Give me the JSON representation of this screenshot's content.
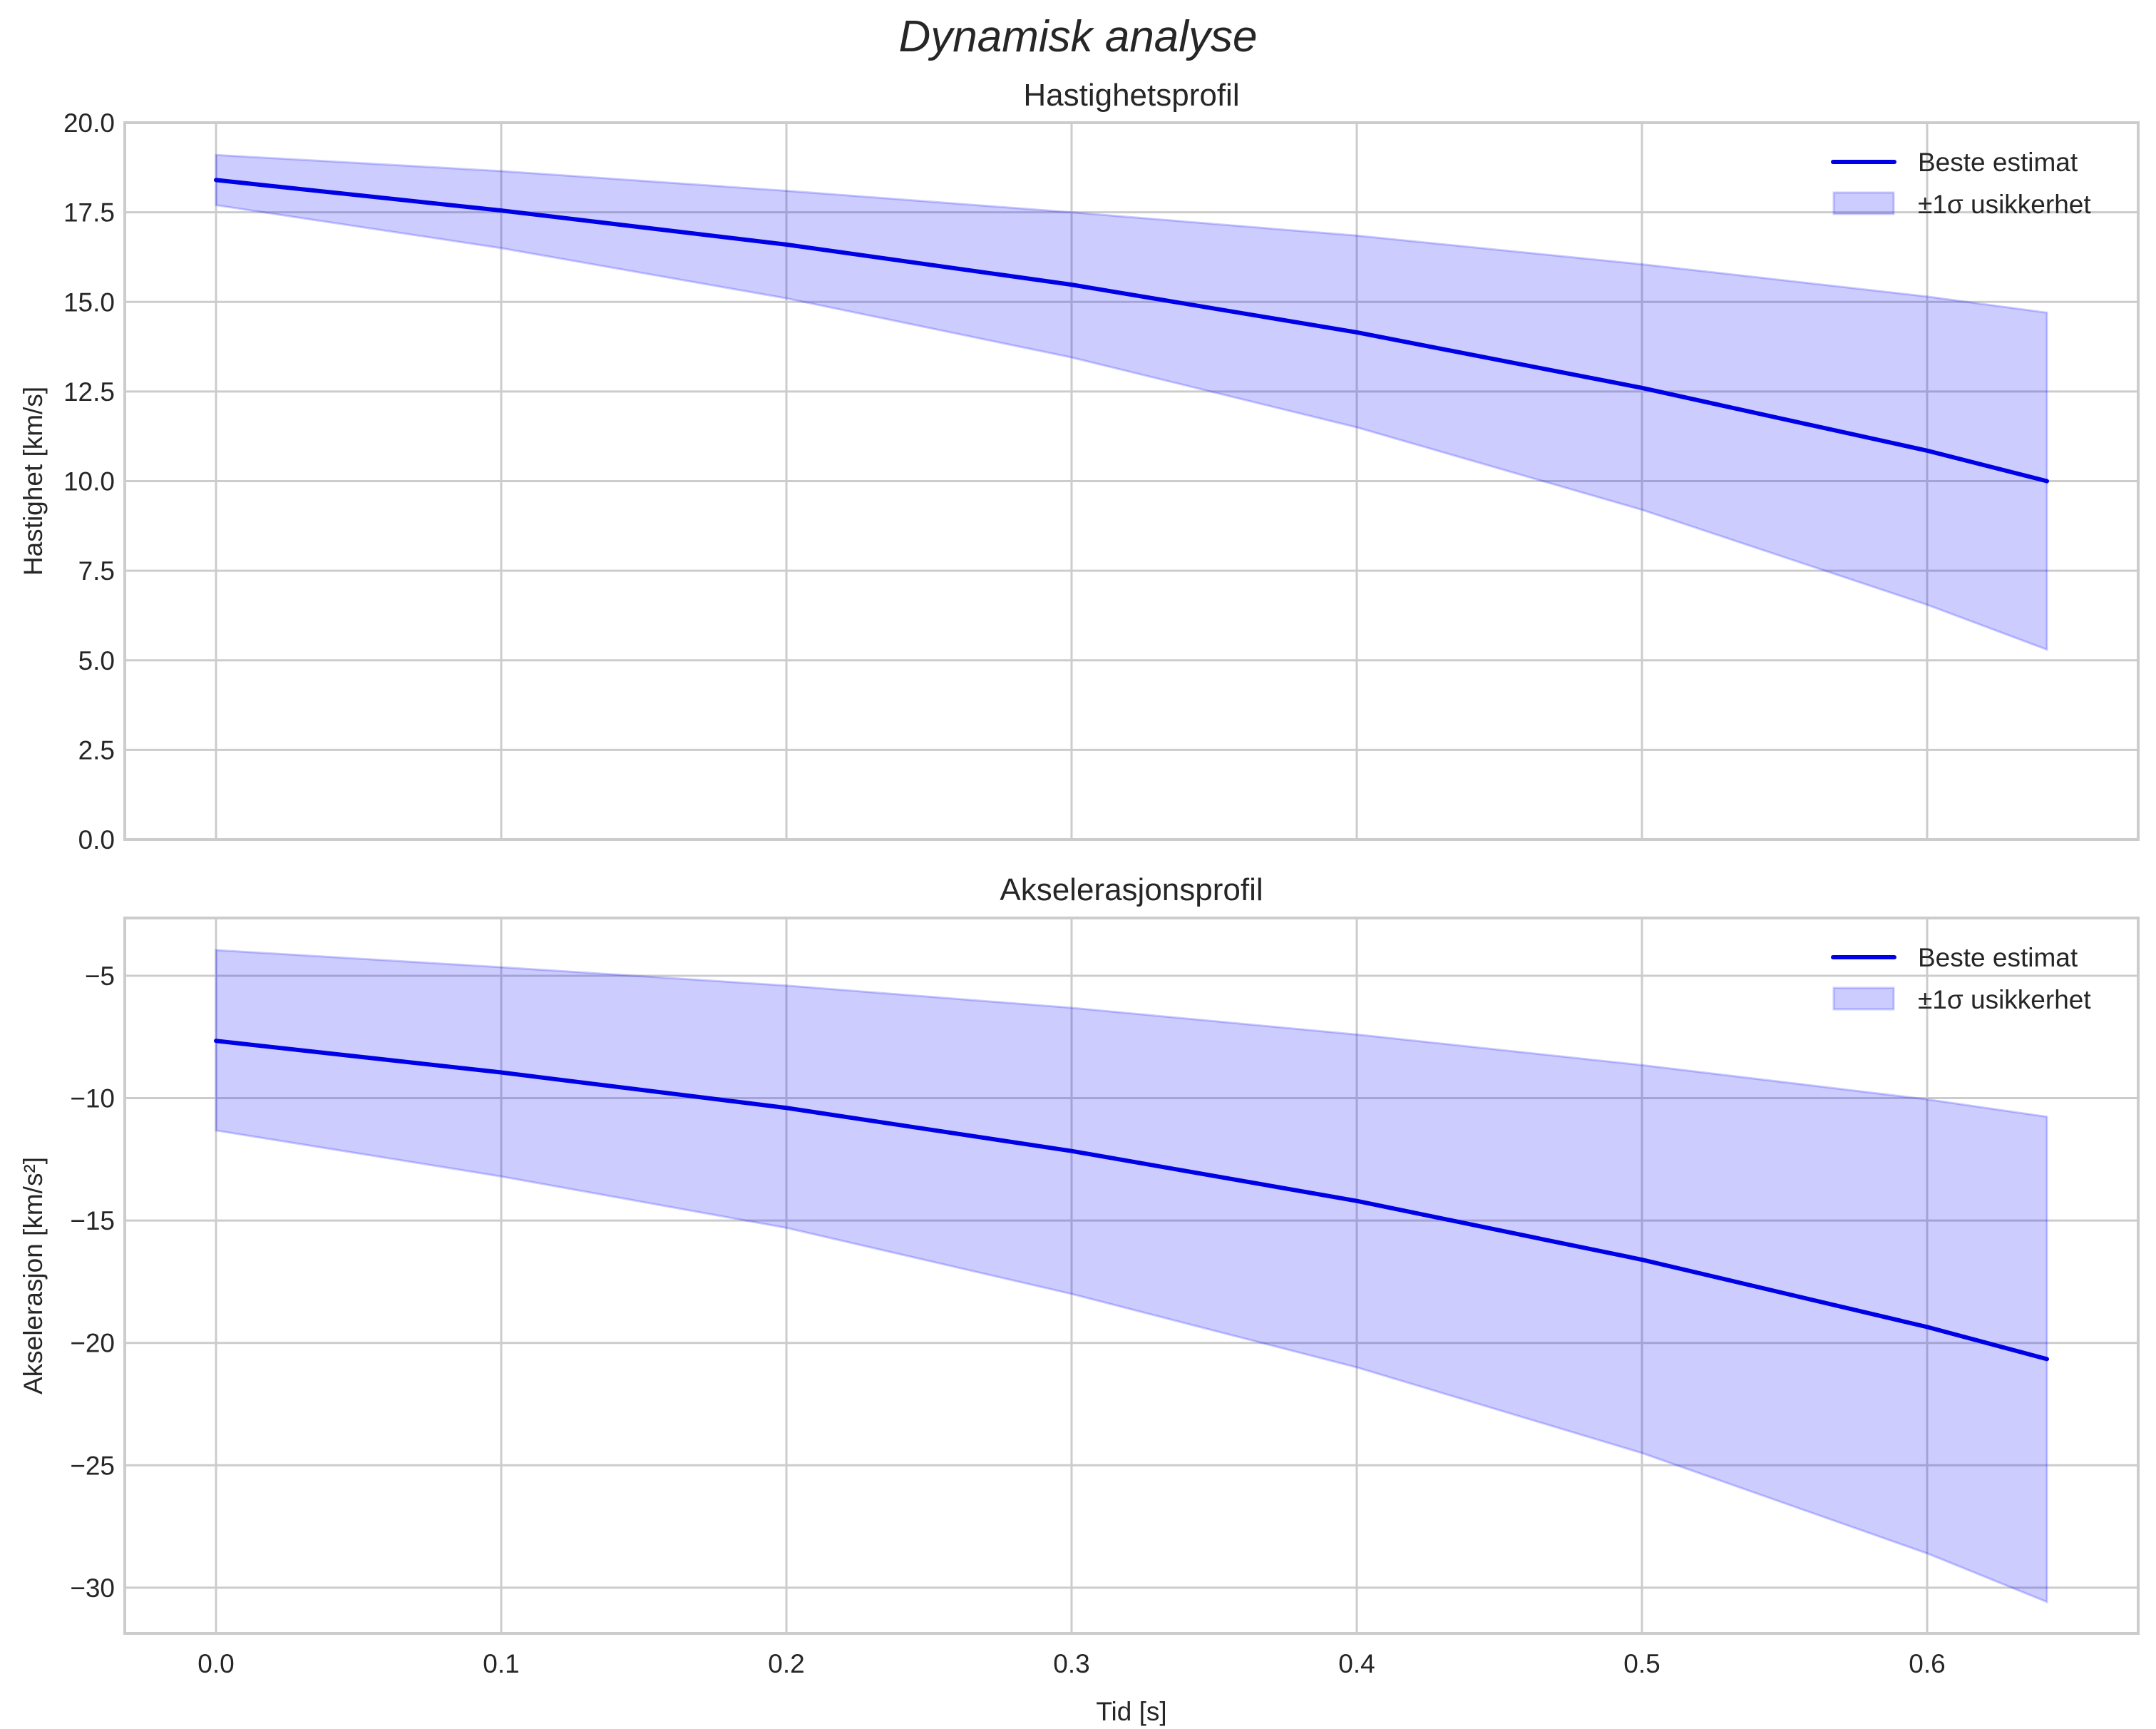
{
  "figure": {
    "suptitle": "Dynamisk analyse"
  },
  "colors": {
    "line": "#0000e6",
    "band_fill": "#0000ff",
    "band_alpha": 0.2,
    "grid": "#cccccc",
    "spine": "#cccccc",
    "text": "#262626"
  },
  "chart_data": [
    {
      "type": "line",
      "title": "Hastighetsprofil",
      "xlabel": "",
      "ylabel": "Hastighet [km/s]",
      "xlim": [
        -0.032,
        0.674
      ],
      "ylim": [
        0.0,
        20.0
      ],
      "xticks": [
        0.0,
        0.1,
        0.2,
        0.3,
        0.4,
        0.5,
        0.6
      ],
      "xtick_labels_visible": false,
      "yticks": [
        0.0,
        2.5,
        5.0,
        7.5,
        10.0,
        12.5,
        15.0,
        17.5,
        20.0
      ],
      "ytick_labels": [
        "0.0",
        "2.5",
        "5.0",
        "7.5",
        "10.0",
        "12.5",
        "15.0",
        "17.5",
        "20.0"
      ],
      "grid": true,
      "legend": {
        "position": "upper right",
        "entries": [
          "Beste estimat",
          "±1σ usikkerhet"
        ]
      },
      "x": [
        0.0,
        0.1,
        0.2,
        0.3,
        0.4,
        0.5,
        0.6,
        0.642
      ],
      "series": [
        {
          "name": "Beste estimat",
          "kind": "line",
          "values": [
            18.4,
            17.55,
            16.6,
            15.48,
            14.15,
            12.6,
            10.85,
            10.0
          ]
        },
        {
          "name": "±1σ usikkerhet",
          "kind": "band",
          "upper": [
            19.1,
            18.65,
            18.1,
            17.5,
            16.85,
            16.05,
            15.15,
            14.7
          ],
          "lower": [
            17.7,
            16.5,
            15.1,
            13.45,
            11.5,
            9.2,
            6.55,
            5.3
          ]
        }
      ]
    },
    {
      "type": "line",
      "title": "Akselerasjonsprofil",
      "xlabel": "Tid [s]",
      "ylabel": "Akselerasjon [km/s²]",
      "xlim": [
        -0.032,
        0.674
      ],
      "ylim": [
        -31.87,
        -2.64
      ],
      "xticks": [
        0.0,
        0.1,
        0.2,
        0.3,
        0.4,
        0.5,
        0.6
      ],
      "xtick_labels": [
        "0.0",
        "0.1",
        "0.2",
        "0.3",
        "0.4",
        "0.5",
        "0.6"
      ],
      "yticks": [
        -30,
        -25,
        -20,
        -15,
        -10,
        -5
      ],
      "ytick_labels": [
        "−30",
        "−25",
        "−20",
        "−15",
        "−10",
        "−5"
      ],
      "grid": true,
      "legend": {
        "position": "upper right",
        "entries": [
          "Beste estimat",
          "±1σ usikkerhet"
        ]
      },
      "x": [
        0.0,
        0.1,
        0.2,
        0.3,
        0.4,
        0.5,
        0.6,
        0.642
      ],
      "series": [
        {
          "name": "Beste estimat",
          "kind": "line",
          "values": [
            -7.66,
            -8.95,
            -10.4,
            -12.16,
            -14.2,
            -16.6,
            -19.35,
            -20.66
          ]
        },
        {
          "name": "±1σ usikkerhet",
          "kind": "band",
          "upper": [
            -3.95,
            -4.65,
            -5.4,
            -6.31,
            -7.4,
            -8.65,
            -10.05,
            -10.76
          ],
          "lower": [
            -11.32,
            -13.2,
            -15.3,
            -18.0,
            -21.0,
            -24.5,
            -28.6,
            -30.58
          ]
        }
      ]
    }
  ]
}
